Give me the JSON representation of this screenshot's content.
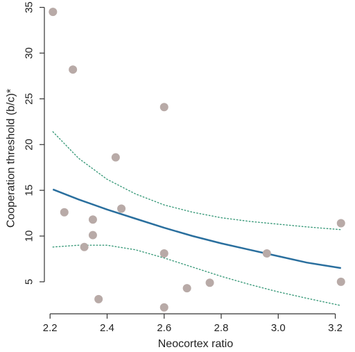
{
  "chart_data": {
    "type": "scatter",
    "title": "",
    "xlabel": "Neocortex ratio",
    "ylabel": "Cooperation threshold (b/c)*",
    "xlim": [
      2.18,
      3.24
    ],
    "ylim": [
      1.5,
      35.5
    ],
    "xticks": [
      2.2,
      2.4,
      2.6,
      2.8,
      3.0,
      3.2
    ],
    "xtick_labels": [
      "2.2",
      "2.4",
      "2.6",
      "2.8",
      "3.0",
      "3.2"
    ],
    "yticks": [
      5,
      10,
      15,
      20,
      25,
      30,
      35
    ],
    "ytick_labels": [
      "5",
      "10",
      "15",
      "20",
      "25",
      "30",
      "35"
    ],
    "grid": false,
    "points": {
      "x": [
        2.21,
        2.28,
        2.25,
        2.32,
        2.35,
        2.35,
        2.37,
        2.43,
        2.45,
        2.6,
        2.6,
        2.6,
        2.68,
        2.76,
        2.96,
        3.22,
        3.22
      ],
      "y": [
        34.5,
        28.2,
        12.6,
        8.8,
        11.8,
        10.1,
        3.1,
        18.6,
        13.0,
        24.1,
        8.1,
        2.2,
        4.3,
        4.9,
        8.1,
        11.4,
        5.0
      ]
    },
    "fit_line": {
      "x": [
        2.21,
        2.3,
        2.4,
        2.5,
        2.6,
        2.7,
        2.8,
        2.9,
        3.0,
        3.1,
        3.22
      ],
      "y": [
        15.1,
        14.0,
        12.9,
        11.9,
        10.9,
        10.0,
        9.2,
        8.5,
        7.8,
        7.1,
        6.5
      ]
    },
    "ci_upper": {
      "x": [
        2.21,
        2.3,
        2.4,
        2.5,
        2.6,
        2.7,
        2.8,
        2.9,
        3.0,
        3.1,
        3.22
      ],
      "y": [
        21.4,
        18.5,
        16.2,
        14.6,
        13.4,
        12.6,
        12.0,
        11.6,
        11.3,
        11.0,
        10.7
      ]
    },
    "ci_lower": {
      "x": [
        2.21,
        2.3,
        2.4,
        2.5,
        2.6,
        2.7,
        2.8,
        2.9,
        3.0,
        3.1,
        3.22
      ],
      "y": [
        8.8,
        9.0,
        9.0,
        8.5,
        7.6,
        6.6,
        5.6,
        4.7,
        3.9,
        3.2,
        2.4
      ]
    },
    "colors": {
      "points": "#b8aaa7",
      "fit_line": "#2a6f9e",
      "ci": "#3a9a7a",
      "axis": "#333333"
    }
  }
}
